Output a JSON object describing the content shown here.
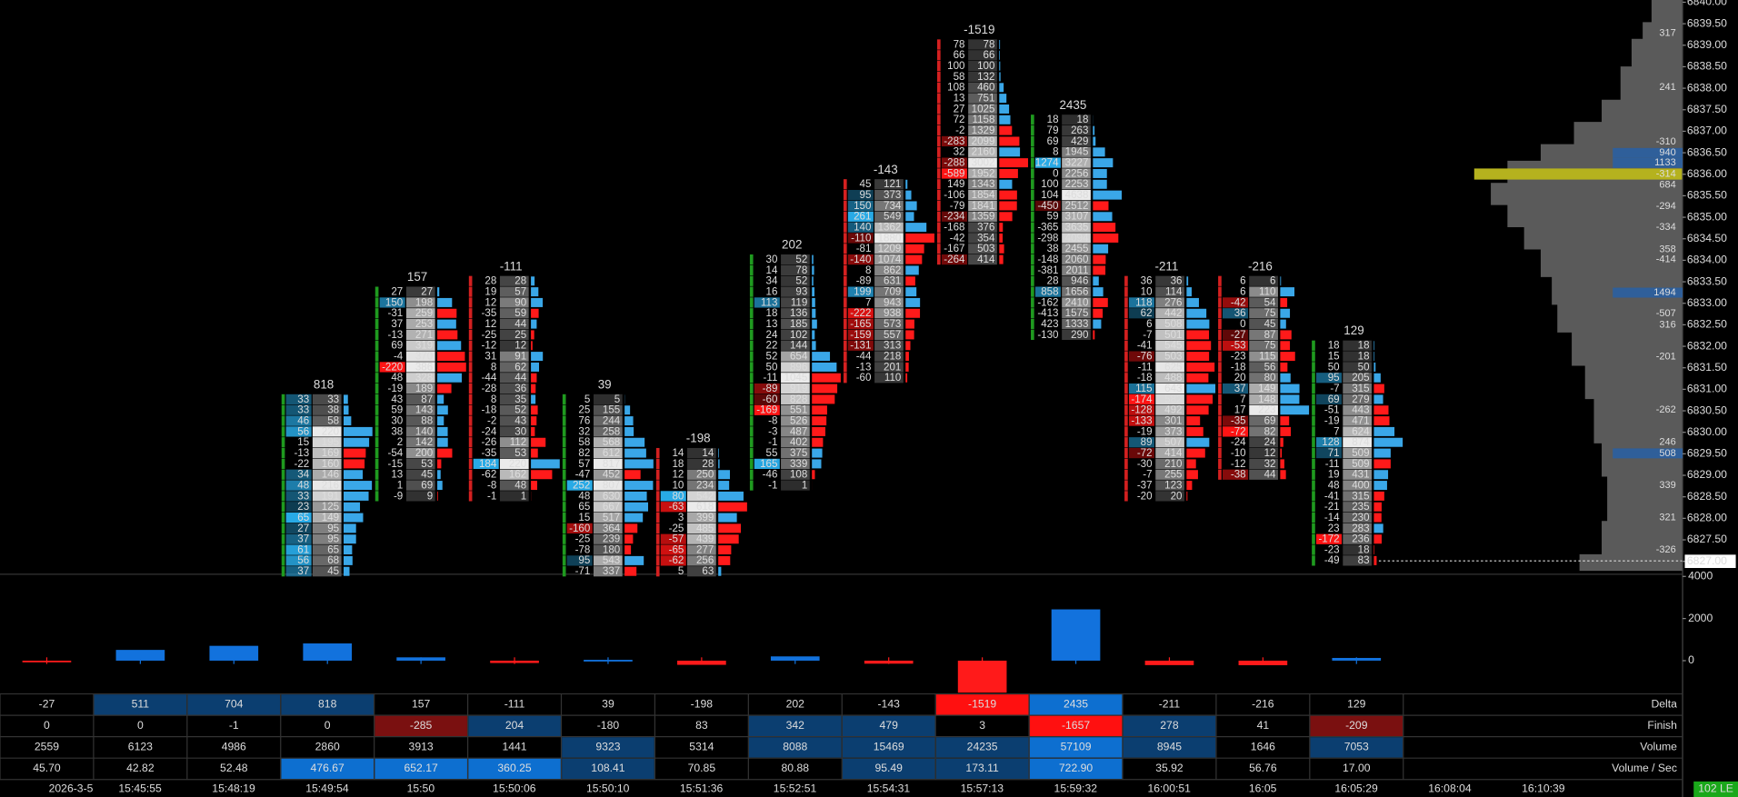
{
  "price_axis": {
    "labels": [
      "6840.00",
      "6839.50",
      "6839.00",
      "6838.50",
      "6838.00",
      "6837.50",
      "6837.00",
      "6836.50",
      "6836.00",
      "6835.50",
      "6835.00",
      "6834.50",
      "6834.00",
      "6833.50",
      "6833.00",
      "6832.50",
      "6832.00",
      "6831.50",
      "6831.00",
      "6830.50",
      "6830.00",
      "6829.50",
      "6829.00",
      "6828.50",
      "6828.00",
      "6827.50",
      "6827.00"
    ]
  },
  "lower_axis": {
    "ticks": [
      4000,
      2000,
      0
    ]
  },
  "footprint": {
    "bars": [
      {
        "header": 818,
        "cells": [
          [
            33,
            33
          ],
          [
            33,
            38
          ],
          [
            46,
            58
          ],
          [
            56,
            220
          ],
          [
            15,
            195
          ],
          [
            -13,
            169
          ],
          [
            -22,
            160
          ],
          [
            34,
            146
          ],
          [
            48,
            216
          ],
          [
            33,
            191
          ],
          [
            23,
            125
          ],
          [
            65,
            149
          ],
          [
            27,
            95
          ],
          [
            37,
            95
          ],
          [
            61,
            65
          ],
          [
            56,
            68
          ],
          [
            37,
            45
          ]
        ]
      },
      {
        "header": 157,
        "cells": [
          [
            27,
            27
          ],
          [
            150,
            198
          ],
          [
            -31,
            259
          ],
          [
            37,
            253
          ],
          [
            -13,
            271
          ],
          [
            69,
            319
          ],
          [
            -4,
            370
          ],
          [
            -220,
            386
          ],
          [
            48,
            328
          ],
          [
            -19,
            189
          ],
          [
            43,
            87
          ],
          [
            59,
            143
          ],
          [
            30,
            88
          ],
          [
            38,
            140
          ],
          [
            2,
            142
          ],
          [
            -54,
            200
          ],
          [
            -15,
            53
          ],
          [
            13,
            45
          ],
          [
            1,
            69
          ],
          [
            -9,
            9
          ]
        ]
      },
      {
        "header": -111,
        "cells": [
          [
            28,
            28
          ],
          [
            19,
            57
          ],
          [
            12,
            90
          ],
          [
            -35,
            59
          ],
          [
            12,
            44
          ],
          [
            -25,
            25
          ],
          [
            -12,
            12
          ],
          [
            31,
            91
          ],
          [
            8,
            62
          ],
          [
            -44,
            44
          ],
          [
            -28,
            36
          ],
          [
            8,
            35
          ],
          [
            -18,
            52
          ],
          [
            -2,
            43
          ],
          [
            -24,
            30
          ],
          [
            -26,
            112
          ],
          [
            -35,
            53
          ],
          [
            184,
            220
          ],
          [
            -62,
            162
          ],
          [
            -8,
            48
          ],
          [
            -1,
            1
          ]
        ]
      },
      {
        "header": 39,
        "cells": [
          [
            5,
            5
          ],
          [
            25,
            155
          ],
          [
            76,
            244
          ],
          [
            32,
            258
          ],
          [
            58,
            568
          ],
          [
            82,
            612
          ],
          [
            57,
            817
          ],
          [
            -47,
            452
          ],
          [
            252,
            807
          ],
          [
            48,
            630
          ],
          [
            65,
            667
          ],
          [
            15,
            517
          ],
          [
            -160,
            364
          ],
          [
            -25,
            239
          ],
          [
            -78,
            180
          ],
          [
            95,
            543
          ],
          [
            -71,
            337
          ]
        ]
      },
      {
        "header": -198,
        "cells": [
          [
            14,
            14
          ],
          [
            18,
            28
          ],
          [
            12,
            250
          ],
          [
            10,
            234
          ],
          [
            80,
            542
          ],
          [
            -63,
            618
          ],
          [
            3,
            399
          ],
          [
            -25,
            485
          ],
          [
            -57,
            439
          ],
          [
            -65,
            277
          ],
          [
            -62,
            256
          ],
          [
            5,
            63
          ]
        ]
      },
      {
        "header": 202,
        "cells": [
          [
            30,
            52
          ],
          [
            14,
            78
          ],
          [
            34,
            52
          ],
          [
            16,
            93
          ],
          [
            113,
            119
          ],
          [
            18,
            136
          ],
          [
            13,
            185
          ],
          [
            24,
            102
          ],
          [
            22,
            144
          ],
          [
            52,
            654
          ],
          [
            50,
            896
          ],
          [
            -11,
            1045
          ],
          [
            -89,
            919
          ],
          [
            -60,
            828
          ],
          [
            -169,
            551
          ],
          [
            -8,
            526
          ],
          [
            -3,
            487
          ],
          [
            -1,
            402
          ],
          [
            55,
            375
          ],
          [
            165,
            339
          ],
          [
            -46,
            108
          ],
          [
            -1,
            1
          ]
        ]
      },
      {
        "header": -143,
        "cells": [
          [
            45,
            121
          ],
          [
            95,
            373
          ],
          [
            150,
            734
          ],
          [
            261,
            549
          ],
          [
            140,
            1362
          ],
          [
            -110,
            1880
          ],
          [
            -81,
            1209
          ],
          [
            -140,
            1074
          ],
          [
            8,
            862
          ],
          [
            -89,
            631
          ],
          [
            199,
            709
          ],
          [
            7,
            943
          ],
          [
            -222,
            938
          ],
          [
            -165,
            573
          ],
          [
            -159,
            557
          ],
          [
            -131,
            313
          ],
          [
            -44,
            218
          ],
          [
            -13,
            201
          ],
          [
            -60,
            110
          ]
        ]
      },
      {
        "header": -1519,
        "cells": [
          [
            78,
            78
          ],
          [
            66,
            66
          ],
          [
            100,
            100
          ],
          [
            58,
            132
          ],
          [
            108,
            460
          ],
          [
            13,
            751
          ],
          [
            27,
            1025
          ],
          [
            72,
            1158
          ],
          [
            -2,
            1329
          ],
          [
            -283,
            2099
          ],
          [
            32,
            2160
          ],
          [
            -288,
            3002
          ],
          [
            -589,
            1952
          ],
          [
            149,
            1343
          ],
          [
            -106,
            1854
          ],
          [
            -79,
            1841
          ],
          [
            -234,
            1359
          ],
          [
            -168,
            376
          ],
          [
            -42,
            354
          ],
          [
            -167,
            503
          ],
          [
            -264,
            414
          ]
        ]
      },
      {
        "header": 2435,
        "cells": [
          [
            18,
            18
          ],
          [
            79,
            263
          ],
          [
            69,
            429
          ],
          [
            8,
            1945
          ],
          [
            1274,
            3227
          ],
          [
            0,
            2256
          ],
          [
            100,
            2253
          ],
          [
            104,
            4638
          ],
          [
            -450,
            2512
          ],
          [
            59,
            3107
          ],
          [
            -365,
            3635
          ],
          [
            -298,
            4094
          ],
          [
            38,
            2455
          ],
          [
            -148,
            2060
          ],
          [
            -381,
            2011
          ],
          [
            28,
            946
          ],
          [
            858,
            1656
          ],
          [
            -162,
            2410
          ],
          [
            -413,
            1575
          ],
          [
            423,
            1333
          ],
          [
            -130,
            290
          ]
        ]
      },
      {
        "header": -211,
        "cells": [
          [
            36,
            36
          ],
          [
            10,
            114
          ],
          [
            118,
            276
          ],
          [
            62,
            442
          ],
          [
            6,
            508
          ],
          [
            -7,
            501
          ],
          [
            -41,
            545
          ],
          [
            -76,
            503
          ],
          [
            -11,
            625
          ],
          [
            -18,
            488
          ],
          [
            115,
            643
          ],
          [
            -174,
            582
          ],
          [
            -128,
            492
          ],
          [
            -133,
            301
          ],
          [
            -19,
            373
          ],
          [
            89,
            507
          ],
          [
            -72,
            414
          ],
          [
            -30,
            210
          ],
          [
            -7,
            255
          ],
          [
            -37,
            123
          ],
          [
            -20,
            20
          ]
        ]
      },
      {
        "header": -216,
        "cells": [
          [
            6,
            6
          ],
          [
            6,
            110
          ],
          [
            -42,
            54
          ],
          [
            36,
            75
          ],
          [
            0,
            45
          ],
          [
            -27,
            87
          ],
          [
            -53,
            75
          ],
          [
            -23,
            115
          ],
          [
            -18,
            56
          ],
          [
            20,
            80
          ],
          [
            37,
            149
          ],
          [
            7,
            148
          ],
          [
            17,
            223
          ],
          [
            -35,
            69
          ],
          [
            -72,
            82
          ],
          [
            -24,
            24
          ],
          [
            -10,
            12
          ],
          [
            -12,
            32
          ],
          [
            -38,
            44
          ]
        ]
      },
      {
        "header": 129,
        "cells": [
          [
            18,
            18
          ],
          [
            15,
            18
          ],
          [
            50,
            50
          ],
          [
            95,
            205
          ],
          [
            -7,
            315
          ],
          [
            69,
            279
          ],
          [
            -51,
            443
          ],
          [
            -19,
            471
          ],
          [
            7,
            624
          ],
          [
            128,
            874
          ],
          [
            71,
            509
          ],
          [
            -11,
            509
          ],
          [
            19,
            431
          ],
          [
            48,
            400
          ],
          [
            -41,
            315
          ],
          [
            -21,
            235
          ],
          [
            -14,
            230
          ],
          [
            23,
            283
          ],
          [
            -172,
            236
          ],
          [
            -23,
            18
          ],
          [
            -49,
            83
          ]
        ]
      }
    ]
  },
  "profile_labels": [
    317,
    241,
    -310,
    940,
    1133,
    -314,
    684,
    -294,
    -334,
    358,
    -414,
    1494,
    -507,
    316,
    -201,
    -262,
    246,
    508,
    339,
    321,
    -326
  ],
  "table": {
    "row_labels": [
      "Delta",
      "Finish",
      "Volume",
      "Volume / Sec"
    ],
    "rows": [
      [
        -27,
        511,
        704,
        818,
        157,
        -111,
        39,
        -198,
        202,
        -143,
        -1519,
        2435,
        -211,
        -216,
        129
      ],
      [
        0,
        0,
        -1,
        0,
        -285,
        204,
        -180,
        83,
        342,
        479,
        3,
        -1657,
        278,
        41,
        -209
      ],
      [
        2559,
        6123,
        4986,
        2860,
        3913,
        1441,
        9323,
        5314,
        8088,
        15469,
        24235,
        57109,
        8945,
        1646,
        7053
      ],
      [
        "45.70",
        "42.82",
        "52.48",
        "476.67",
        "652.17",
        "360.25",
        "108.41",
        "70.85",
        "80.88",
        "95.49",
        "173.11",
        "722.90",
        "35.92",
        "56.76",
        "17.00"
      ]
    ]
  },
  "time_axis": [
    "2026-3-5",
    "15:45:55",
    "15:48:19",
    "15:49:54",
    "15:50",
    "15:50:06",
    "15:50:10",
    "15:51:36",
    "15:52:51",
    "15:54:31",
    "15:57:13",
    "15:59:32",
    "16:00:51",
    "16:05",
    "16:05:29",
    "16:08:04",
    "16:10:39"
  ],
  "status": "102 LE"
}
